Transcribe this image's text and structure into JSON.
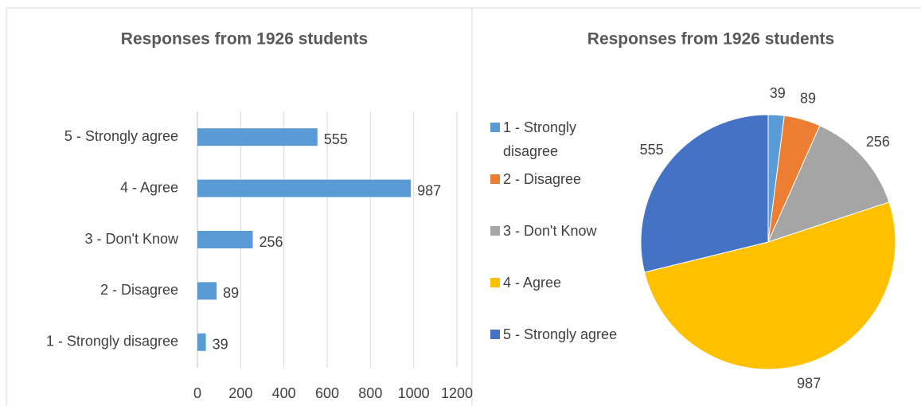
{
  "chart_data": [
    {
      "type": "bar",
      "title": "Responses from 1926 students",
      "categories": [
        "1 - Strongly disagree",
        "2 - Disagree",
        "3 - Don't Know",
        "4 - Agree",
        "5 - Strongly agree"
      ],
      "values": [
        39,
        89,
        256,
        987,
        555
      ],
      "color": "#5b9bd5",
      "xlim": [
        0,
        1200
      ],
      "xticks": [
        0,
        200,
        400,
        600,
        800,
        1000,
        1200
      ],
      "grid": true
    },
    {
      "type": "pie",
      "title": "Responses from 1926 students",
      "categories": [
        "1 - Strongly disagree",
        "2 - Disagree",
        "3 - Don't Know",
        "4 - Agree",
        "5 - Strongly agree"
      ],
      "values": [
        39,
        89,
        256,
        987,
        555
      ],
      "colors": [
        "#5b9bd5",
        "#ed7d31",
        "#a5a5a5",
        "#ffc000",
        "#4472c4"
      ],
      "legend": "left"
    }
  ]
}
